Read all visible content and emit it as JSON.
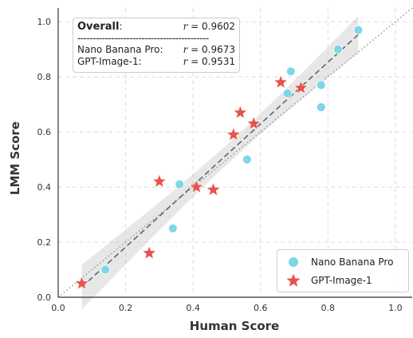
{
  "chart_data": {
    "type": "scatter",
    "xlabel": "Human Score",
    "ylabel": "LMM Score",
    "xlim": [
      0.0,
      1.05
    ],
    "ylim": [
      0.0,
      1.05
    ],
    "x_ticks": [
      "0.0",
      "0.2",
      "0.4",
      "0.6",
      "0.8",
      "1.0"
    ],
    "y_ticks": [
      "0.0",
      "0.2",
      "0.4",
      "0.6",
      "0.8",
      "1.0"
    ],
    "grid": true,
    "legend_position": "bottom-right",
    "reference_line": "y = x (dotted)",
    "fit_line": {
      "style": "dashed",
      "confidence_band": true
    },
    "stats": {
      "overall_label": "Overall",
      "overall_colon": ":",
      "overall_r": "r = 0.9602",
      "divider": "-------------------------------------------",
      "rows": [
        {
          "label": "Nano Banana Pro:",
          "r": "r = 0.9673"
        },
        {
          "label": "GPT-Image-1:",
          "r": "r = 0.9531"
        }
      ]
    },
    "series": [
      {
        "name": "Nano Banana Pro",
        "marker": "circle",
        "color": "#7fd6e8",
        "points": [
          [
            0.14,
            0.1
          ],
          [
            0.34,
            0.25
          ],
          [
            0.36,
            0.41
          ],
          [
            0.56,
            0.5
          ],
          [
            0.68,
            0.74
          ],
          [
            0.69,
            0.82
          ],
          [
            0.78,
            0.69
          ],
          [
            0.78,
            0.77
          ],
          [
            0.83,
            0.9
          ],
          [
            0.89,
            0.97
          ]
        ]
      },
      {
        "name": "GPT-Image-1",
        "marker": "star",
        "color": "#e8534b",
        "points": [
          [
            0.07,
            0.05
          ],
          [
            0.27,
            0.16
          ],
          [
            0.3,
            0.42
          ],
          [
            0.41,
            0.4
          ],
          [
            0.46,
            0.39
          ],
          [
            0.52,
            0.59
          ],
          [
            0.54,
            0.67
          ],
          [
            0.58,
            0.63
          ],
          [
            0.66,
            0.78
          ],
          [
            0.72,
            0.76
          ]
        ]
      }
    ]
  }
}
